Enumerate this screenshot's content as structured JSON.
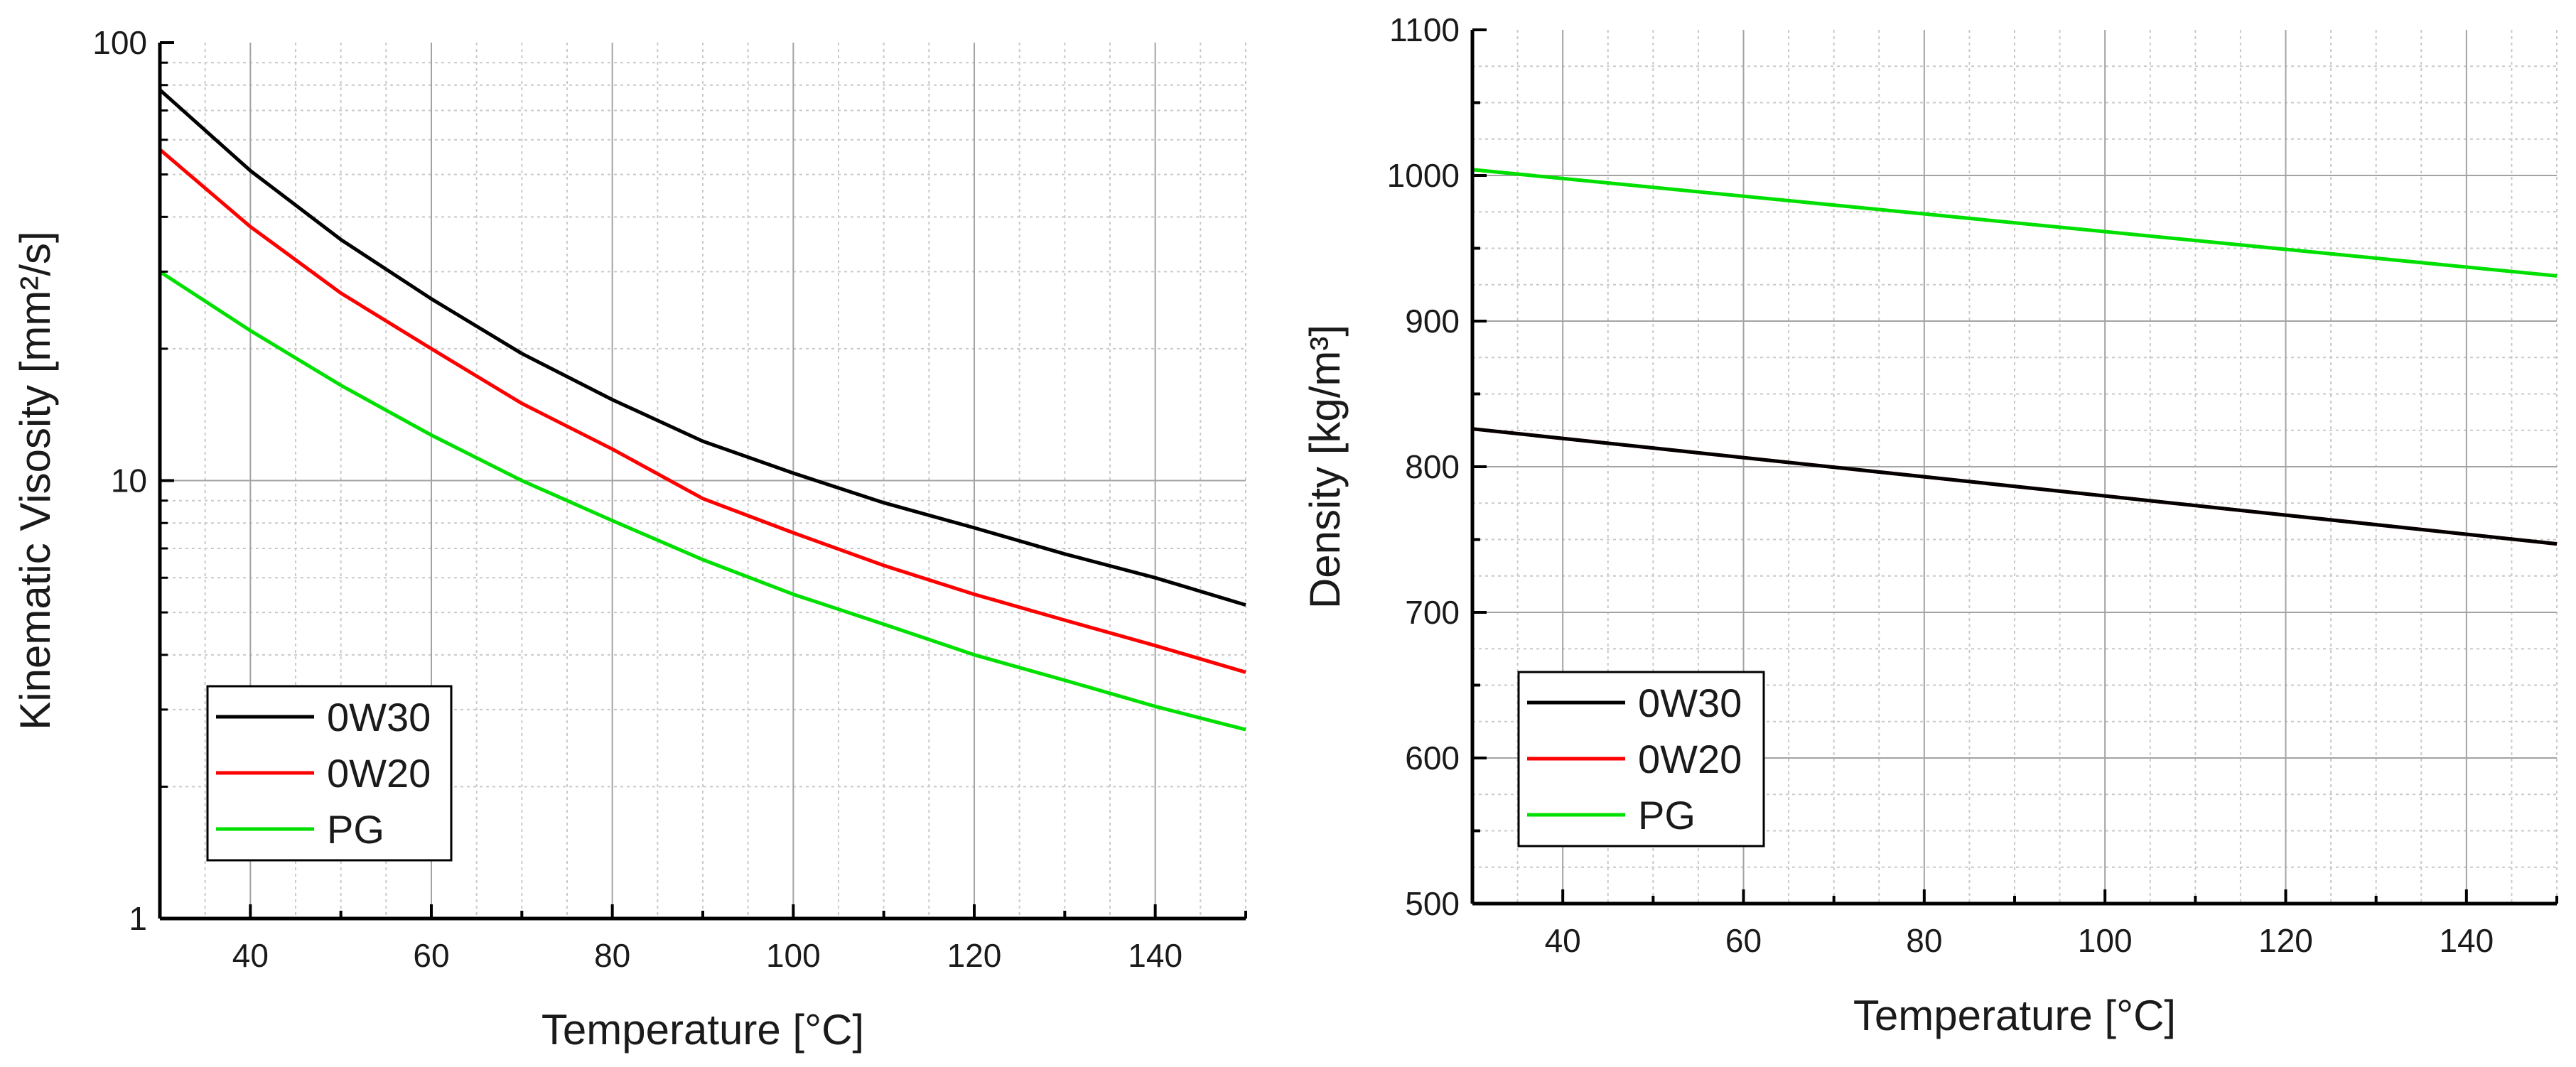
{
  "chart_data": [
    {
      "type": "line",
      "title": "",
      "xlabel": "Temperature [°C]",
      "ylabel": "Kinematic Visosity [mm²/s]",
      "yscale": "log",
      "xlim": [
        30,
        150
      ],
      "ylim": [
        1,
        100
      ],
      "xticks": [
        40,
        60,
        80,
        100,
        120,
        140
      ],
      "yticks": [
        1,
        10,
        100
      ],
      "grid": true,
      "legend_position": "lower-left",
      "x": [
        30,
        40,
        50,
        60,
        70,
        80,
        90,
        100,
        110,
        120,
        130,
        140,
        150
      ],
      "series": [
        {
          "name": "0W30",
          "color": "#000000",
          "values": [
            78,
            51,
            35.5,
            26,
            19.5,
            15.3,
            12.3,
            10.4,
            8.9,
            7.8,
            6.8,
            6.0,
            5.2
          ]
        },
        {
          "name": "0W20",
          "color": "#ff0000",
          "values": [
            57,
            38,
            26.8,
            20,
            15,
            11.8,
            9.1,
            7.6,
            6.4,
            5.5,
            4.8,
            4.2,
            3.65
          ]
        },
        {
          "name": "PG",
          "color": "#00e000",
          "values": [
            30,
            22,
            16.5,
            12.7,
            10,
            8.1,
            6.6,
            5.5,
            4.7,
            4.0,
            3.5,
            3.05,
            2.7
          ]
        }
      ]
    },
    {
      "type": "line",
      "title": "",
      "xlabel": "Temperature [°C]",
      "ylabel": "Density [kg/m³]",
      "yscale": "linear",
      "xlim": [
        30,
        150
      ],
      "ylim": [
        500,
        1100
      ],
      "xticks": [
        40,
        60,
        80,
        100,
        120,
        140
      ],
      "yticks": [
        500,
        600,
        700,
        800,
        900,
        1000,
        1100
      ],
      "grid": true,
      "legend_position": "lower-left",
      "x": [
        30,
        150
      ],
      "series": [
        {
          "name": "0W30",
          "color": "#000000",
          "values": [
            826,
            747
          ]
        },
        {
          "name": "0W20",
          "color": "#ff0000",
          "values": [
            826,
            747
          ]
        },
        {
          "name": "PG",
          "color": "#00e000",
          "values": [
            1004,
            931
          ]
        }
      ]
    }
  ]
}
